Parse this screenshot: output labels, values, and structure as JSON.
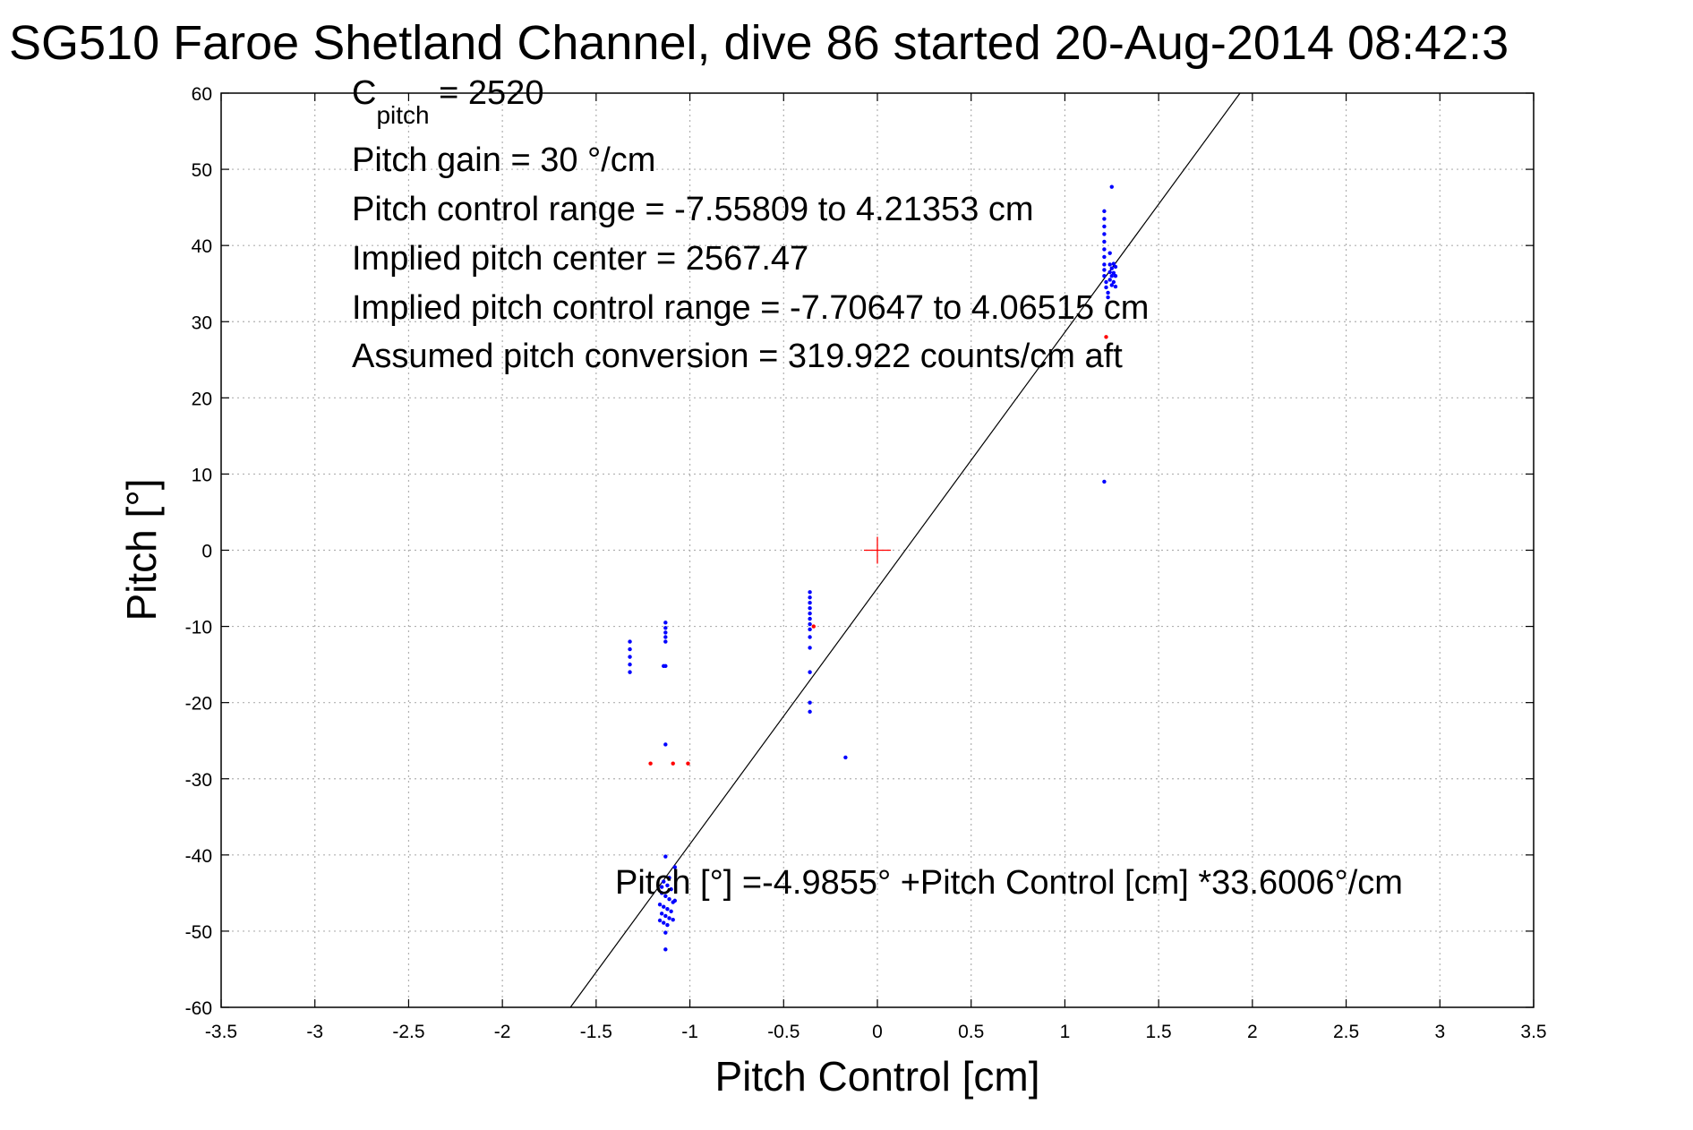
{
  "chart_data": {
    "type": "scatter",
    "title": "SG510 Faroe Shetland Channel, dive 86 started 20-Aug-2014 08:42:3",
    "xlabel": "Pitch Control [cm]",
    "ylabel": "Pitch [°]",
    "xlim": [
      -3.5,
      3.5
    ],
    "ylim": [
      -60,
      60
    ],
    "x_ticks": [
      -3.5,
      -3,
      -2.5,
      -2,
      -1.5,
      -1,
      -0.5,
      0,
      0.5,
      1,
      1.5,
      2,
      2.5,
      3,
      3.5
    ],
    "y_ticks": [
      -60,
      -50,
      -40,
      -30,
      -20,
      -10,
      0,
      10,
      20,
      30,
      40,
      50,
      60
    ],
    "x_tick_labels": [
      "-3.5",
      "-3",
      "-2.5",
      "-2",
      "-1.5",
      "-1",
      "-0.5",
      "0",
      "0.5",
      "1",
      "1.5",
      "2",
      "2.5",
      "3",
      "3.5"
    ],
    "y_tick_labels": [
      "-60",
      "-50",
      "-40",
      "-30",
      "-20",
      "-10",
      "0",
      "10",
      "20",
      "30",
      "40",
      "50",
      "60"
    ],
    "grid": true,
    "annotations": [
      {
        "main": "C",
        "sub": "pitch",
        "rest": " = 2520"
      },
      {
        "text": "Pitch gain = 30 °/cm"
      },
      {
        "text": "Pitch control range = -7.55809 to 4.21353 cm"
      },
      {
        "text": "Implied pitch center = 2567.47"
      },
      {
        "text": "Implied pitch control range = -7.70647 to 4.06515 cm"
      },
      {
        "text": "Assumed pitch conversion = 319.922 counts/cm aft"
      }
    ],
    "fit_label": "Pitch [°] =-4.9855° +Pitch Control [cm] *33.6006°/cm",
    "fit_line": {
      "intercept": -4.9855,
      "slope": 33.6006,
      "color": "#000000"
    },
    "center_marker": {
      "x": 0,
      "y": 0,
      "color": "#ff0000"
    },
    "series": [
      {
        "color": "#0000ff",
        "points": [
          [
            1.21,
            44.5
          ],
          [
            1.21,
            43.5
          ],
          [
            1.21,
            42.5
          ],
          [
            1.21,
            41.5
          ],
          [
            1.21,
            40.5
          ],
          [
            1.21,
            39.5
          ],
          [
            1.21,
            38.5
          ],
          [
            1.21,
            37.5
          ],
          [
            1.21,
            36.8
          ],
          [
            1.21,
            36.0
          ],
          [
            1.22,
            35.2
          ],
          [
            1.22,
            34.5
          ],
          [
            1.23,
            33.8
          ],
          [
            1.23,
            33.2
          ],
          [
            1.24,
            37.5
          ],
          [
            1.24,
            36.5
          ],
          [
            1.24,
            35.5
          ],
          [
            1.25,
            37.0
          ],
          [
            1.25,
            36.0
          ],
          [
            1.25,
            34.8
          ],
          [
            1.26,
            37.6
          ],
          [
            1.26,
            36.4
          ],
          [
            1.26,
            35.2
          ],
          [
            1.27,
            37.2
          ],
          [
            1.27,
            36.0
          ],
          [
            1.27,
            34.6
          ],
          [
            1.24,
            39.0
          ],
          [
            1.25,
            47.7
          ],
          [
            1.21,
            9.0
          ],
          [
            -1.32,
            -12.0
          ],
          [
            -1.32,
            -13.0
          ],
          [
            -1.32,
            -14.0
          ],
          [
            -1.32,
            -15.0
          ],
          [
            -1.32,
            -16.0
          ],
          [
            -1.13,
            -9.5
          ],
          [
            -1.13,
            -10.2
          ],
          [
            -1.13,
            -10.8
          ],
          [
            -1.13,
            -11.4
          ],
          [
            -1.13,
            -12.0
          ],
          [
            -1.13,
            -15.2
          ],
          [
            -1.14,
            -15.2
          ],
          [
            -1.13,
            -25.5
          ],
          [
            -0.36,
            -5.5
          ],
          [
            -0.36,
            -6.2
          ],
          [
            -0.36,
            -6.9
          ],
          [
            -0.36,
            -7.6
          ],
          [
            -0.36,
            -8.3
          ],
          [
            -0.36,
            -9.0
          ],
          [
            -0.36,
            -9.7
          ],
          [
            -0.36,
            -10.4
          ],
          [
            -0.36,
            -11.4
          ],
          [
            -0.36,
            -12.8
          ],
          [
            -0.36,
            -16.0
          ],
          [
            -0.36,
            -20.0
          ],
          [
            -0.36,
            -21.2
          ],
          [
            -0.17,
            -27.2
          ],
          [
            -1.13,
            -40.2
          ],
          [
            -1.08,
            -41.6
          ],
          [
            -1.11,
            -43.0
          ],
          [
            -1.14,
            -43.5
          ],
          [
            -1.12,
            -44.0
          ],
          [
            -1.1,
            -44.5
          ],
          [
            -1.15,
            -45.0
          ],
          [
            -1.13,
            -45.4
          ],
          [
            -1.11,
            -45.8
          ],
          [
            -1.09,
            -46.2
          ],
          [
            -1.16,
            -46.5
          ],
          [
            -1.14,
            -46.8
          ],
          [
            -1.12,
            -47.1
          ],
          [
            -1.1,
            -47.4
          ],
          [
            -1.15,
            -47.7
          ],
          [
            -1.13,
            -48.0
          ],
          [
            -1.11,
            -48.3
          ],
          [
            -1.16,
            -48.6
          ],
          [
            -1.14,
            -48.9
          ],
          [
            -1.12,
            -49.2
          ],
          [
            -1.13,
            -50.2
          ],
          [
            -1.13,
            -52.4
          ],
          [
            -1.08,
            -46.0
          ],
          [
            -1.09,
            -48.5
          ],
          [
            -1.15,
            -44.2
          ]
        ]
      },
      {
        "color": "#ff0000",
        "points": [
          [
            1.22,
            28.0
          ],
          [
            -1.21,
            -28.0
          ],
          [
            -1.09,
            -28.0
          ],
          [
            -1.01,
            -28.0
          ],
          [
            -0.34,
            -10.0
          ]
        ]
      }
    ]
  }
}
